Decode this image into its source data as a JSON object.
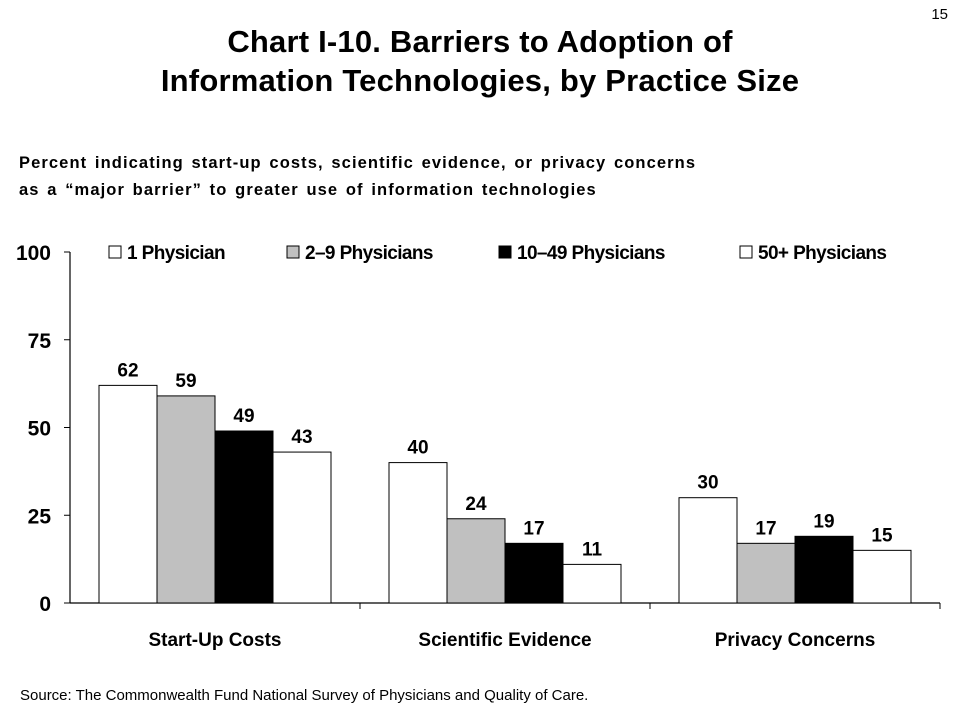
{
  "page_number": "15",
  "title_line1": "Chart I-10. Barriers to Adoption of",
  "title_line2": "Information Technologies, by Practice Size",
  "subtitle_line1": "Percent indicating start-up costs, scientific evidence, or privacy concerns",
  "subtitle_line2": "as a “major barrier” to greater use of information technologies",
  "source": "Source: The Commonwealth Fund National Survey of Physicians and Quality of Care.",
  "chart_data": {
    "type": "bar",
    "title": "Chart I-10. Barriers to Adoption of Information Technologies, by Practice Size",
    "categories": [
      "Start-Up Costs",
      "Scientific Evidence",
      "Privacy Concerns"
    ],
    "series": [
      {
        "name": "1 Physician",
        "values": [
          62,
          40,
          30
        ],
        "color": "#ffffff"
      },
      {
        "name": "2–9 Physicians",
        "values": [
          59,
          24,
          17
        ],
        "color": "#c0c0c0"
      },
      {
        "name": "10–49 Physicians",
        "values": [
          49,
          17,
          19
        ],
        "color": "#000000"
      },
      {
        "name": "50+ Physicians",
        "values": [
          43,
          11,
          15
        ],
        "color": "#ffffff"
      }
    ],
    "ylim": [
      0,
      100
    ],
    "yticks": [
      0,
      25,
      50,
      75,
      100
    ],
    "xlabel": "",
    "ylabel": "",
    "grid": false,
    "legend_position": "top"
  }
}
